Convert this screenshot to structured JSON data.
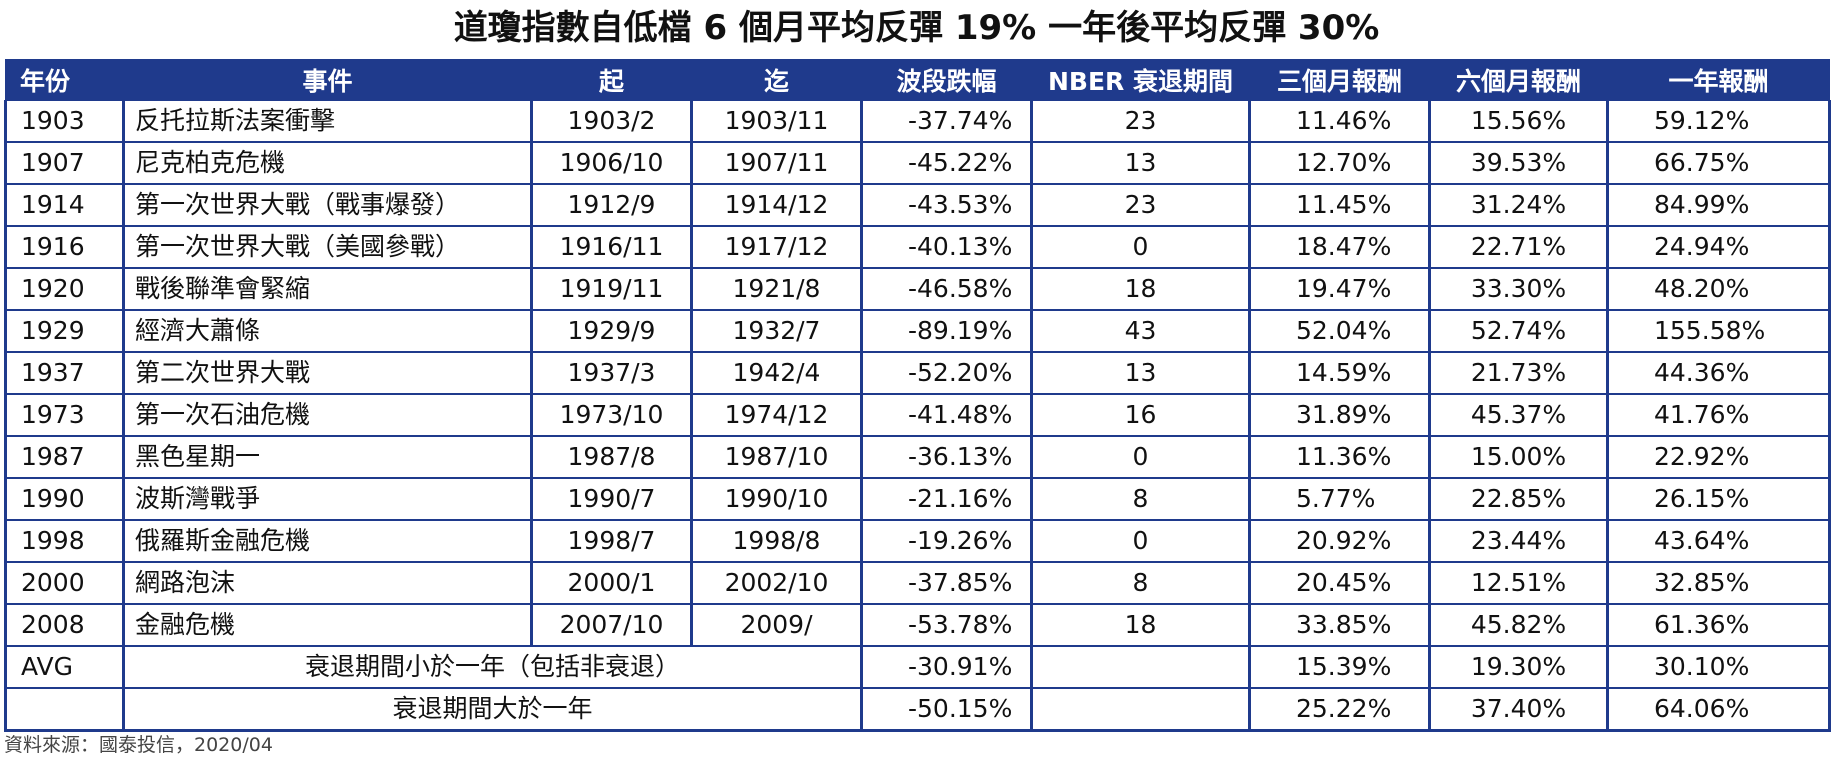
{
  "title": "道瓊指數自低檔 6 個月平均反彈 19% 一年後平均反彈 30%",
  "headers": [
    "年份",
    "事件",
    "起",
    "迄",
    "波段跌幅",
    "NBER 衰退期間",
    "三個月報酬",
    "六個月報酬",
    "一年報酬"
  ],
  "rows": [
    {
      "year": "1903",
      "event": "反托拉斯法案衝擊",
      "start": "1903/2",
      "end": "1903/11",
      "drop": "-37.74%",
      "nber": "23",
      "r3m": "11.46%",
      "r6m": "15.56%",
      "r1y": "59.12%"
    },
    {
      "year": "1907",
      "event": "尼克柏克危機",
      "start": "1906/10",
      "end": "1907/11",
      "drop": "-45.22%",
      "nber": "13",
      "r3m": "12.70%",
      "r6m": "39.53%",
      "r1y": "66.75%"
    },
    {
      "year": "1914",
      "event": "第一次世界大戰（戰事爆發）",
      "start": "1912/9",
      "end": "1914/12",
      "drop": "-43.53%",
      "nber": "23",
      "r3m": "11.45%",
      "r6m": "31.24%",
      "r1y": "84.99%"
    },
    {
      "year": "1916",
      "event": "第一次世界大戰（美國參戰）",
      "start": "1916/11",
      "end": "1917/12",
      "drop": "-40.13%",
      "nber": "0",
      "r3m": "18.47%",
      "r6m": "22.71%",
      "r1y": "24.94%"
    },
    {
      "year": "1920",
      "event": "戰後聯準會緊縮",
      "start": "1919/11",
      "end": "1921/8",
      "drop": "-46.58%",
      "nber": "18",
      "r3m": "19.47%",
      "r6m": "33.30%",
      "r1y": "48.20%"
    },
    {
      "year": "1929",
      "event": "經濟大蕭條",
      "start": "1929/9",
      "end": "1932/7",
      "drop": "-89.19%",
      "nber": "43",
      "r3m": "52.04%",
      "r6m": "52.74%",
      "r1y": "155.58%"
    },
    {
      "year": "1937",
      "event": "第二次世界大戰",
      "start": "1937/3",
      "end": "1942/4",
      "drop": "-52.20%",
      "nber": "13",
      "r3m": "14.59%",
      "r6m": "21.73%",
      "r1y": "44.36%"
    },
    {
      "year": "1973",
      "event": "第一次石油危機",
      "start": "1973/10",
      "end": "1974/12",
      "drop": "-41.48%",
      "nber": "16",
      "r3m": "31.89%",
      "r6m": "45.37%",
      "r1y": "41.76%"
    },
    {
      "year": "1987",
      "event": "黑色星期一",
      "start": "1987/8",
      "end": "1987/10",
      "drop": "-36.13%",
      "nber": "0",
      "r3m": "11.36%",
      "r6m": "15.00%",
      "r1y": "22.92%"
    },
    {
      "year": "1990",
      "event": "波斯灣戰爭",
      "start": "1990/7",
      "end": "1990/10",
      "drop": "-21.16%",
      "nber": "8",
      "r3m": "5.77%",
      "r6m": "22.85%",
      "r1y": "26.15%"
    },
    {
      "year": "1998",
      "event": "俄羅斯金融危機",
      "start": "1998/7",
      "end": "1998/8",
      "drop": "-19.26%",
      "nber": "0",
      "r3m": "20.92%",
      "r6m": "23.44%",
      "r1y": "43.64%"
    },
    {
      "year": "2000",
      "event": "網路泡沫",
      "start": "2000/1",
      "end": "2002/10",
      "drop": "-37.85%",
      "nber": "8",
      "r3m": "20.45%",
      "r6m": "12.51%",
      "r1y": "32.85%"
    },
    {
      "year": "2008",
      "event": "金融危機",
      "start": "2007/10",
      "end": "2009/",
      "drop": "-53.78%",
      "nber": "18",
      "r3m": "33.85%",
      "r6m": "45.82%",
      "r1y": "61.36%"
    }
  ],
  "avg": [
    {
      "label": "AVG",
      "desc": "衰退期間小於一年（包括非衰退）",
      "drop": "-30.91%",
      "r3m": "15.39%",
      "r6m": "19.30%",
      "r1y": "30.10%"
    },
    {
      "label": "",
      "desc": "衰退期間大於一年",
      "drop": "-50.15%",
      "r3m": "25.22%",
      "r6m": "37.40%",
      "r1y": "64.06%"
    }
  ],
  "source": "資料來源：國泰投信，2020/04",
  "colors": {
    "header_bg": "#1f3a8c",
    "header_text": "#ffffff",
    "border": "#1f3a8c"
  }
}
